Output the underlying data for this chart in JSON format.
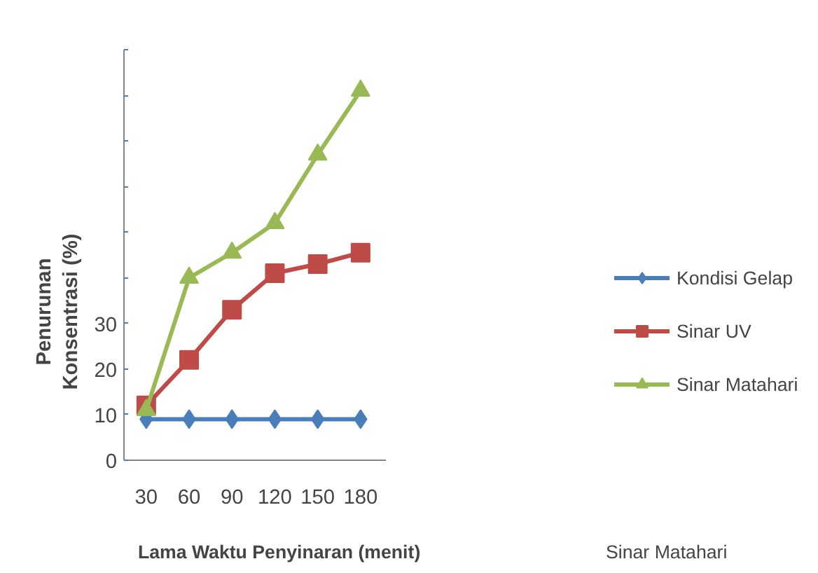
{
  "chart_data": {
    "type": "line",
    "xlabel": "Lama Waktu Penyinaran (menit)",
    "ylabel": "Penurunan\nKonsentrasi (%)",
    "categories": [
      "30",
      "60",
      "90",
      "120",
      "150",
      "180"
    ],
    "series": [
      {
        "name": "Kondisi Gelap",
        "color": "#4a7ebb",
        "marker": "diamond",
        "values": [
          9,
          9,
          9,
          9,
          9,
          9
        ]
      },
      {
        "name": "Sinar UV",
        "color": "#be4b48",
        "marker": "square",
        "values": [
          12,
          22,
          33,
          41,
          43,
          45.5
        ]
      },
      {
        "name": "Sinar Matahari",
        "color": "#98b954",
        "marker": "triangle",
        "values": [
          11,
          40,
          45.5,
          52,
          67,
          81
        ]
      }
    ],
    "ylim": [
      0,
      90
    ],
    "yticks": [
      0,
      10,
      20,
      30,
      {
        "value": 40,
        "label": null
      },
      {
        "value": 50,
        "label": null
      },
      {
        "value": 60,
        "label": null
      },
      {
        "value": 70,
        "label": null
      },
      {
        "value": 80,
        "label": null
      },
      {
        "value": 90,
        "label": null
      }
    ],
    "legend": "right",
    "annotations": [
      "Sinar Matahari"
    ]
  }
}
